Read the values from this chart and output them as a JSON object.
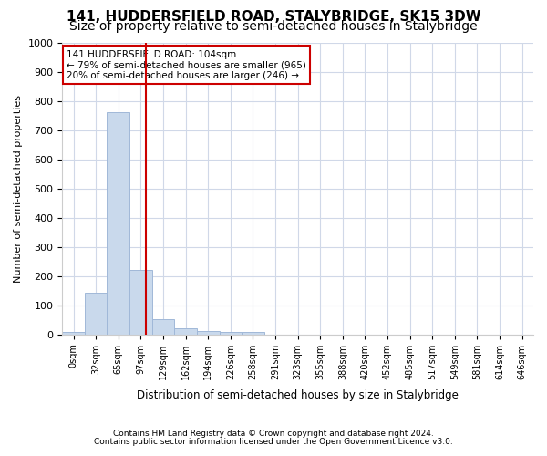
{
  "title1": "141, HUDDERSFIELD ROAD, STALYBRIDGE, SK15 3DW",
  "title2": "Size of property relative to semi-detached houses in Stalybridge",
  "xlabel": "Distribution of semi-detached houses by size in Stalybridge",
  "ylabel": "Number of semi-detached properties",
  "footnote1": "Contains HM Land Registry data © Crown copyright and database right 2024.",
  "footnote2": "Contains public sector information licensed under the Open Government Licence v3.0.",
  "bin_labels": [
    "0sqm",
    "32sqm",
    "65sqm",
    "97sqm",
    "129sqm",
    "162sqm",
    "194sqm",
    "226sqm",
    "258sqm",
    "291sqm",
    "323sqm",
    "355sqm",
    "388sqm",
    "420sqm",
    "452sqm",
    "485sqm",
    "517sqm",
    "549sqm",
    "581sqm",
    "614sqm",
    "646sqm"
  ],
  "bar_values": [
    8,
    143,
    760,
    220,
    53,
    22,
    12,
    10,
    10,
    0,
    0,
    0,
    0,
    0,
    0,
    0,
    0,
    0,
    0,
    0,
    0
  ],
  "bar_color": "#c9d9ec",
  "bar_edge_color": "#a0b8d8",
  "grid_color": "#d0d8e8",
  "vline_color": "#cc0000",
  "annotation_text1": "141 HUDDERSFIELD ROAD: 104sqm",
  "annotation_text2": "← 79% of semi-detached houses are smaller (965)",
  "annotation_text3": "20% of semi-detached houses are larger (246) →",
  "annotation_box_color": "#ffffff",
  "annotation_border_color": "#cc0000",
  "ylim": [
    0,
    1000
  ],
  "yticks": [
    0,
    100,
    200,
    300,
    400,
    500,
    600,
    700,
    800,
    900,
    1000
  ],
  "background_color": "#ffffff",
  "title1_fontsize": 11,
  "title2_fontsize": 10
}
